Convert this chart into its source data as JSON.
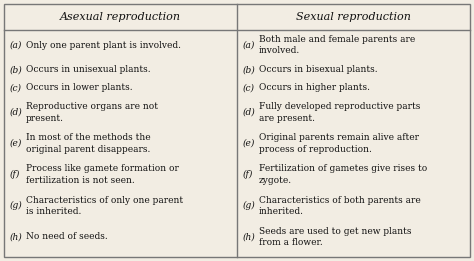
{
  "title_left": "Asexual reproduction",
  "title_right": "Sexual reproduction",
  "left_items": [
    [
      "(a)",
      "Only one parent plant is involved."
    ],
    [
      "(b)",
      "Occurs in unisexual plants."
    ],
    [
      "(c)",
      "Occurs in lower plants."
    ],
    [
      "(d)",
      "Reproductive organs are not\npresent."
    ],
    [
      "(e)",
      "In most of the methods the\noriginal parent disappears."
    ],
    [
      "(f)",
      "Process like gamete formation or\nfertilization is not seen."
    ],
    [
      "(g)",
      "Characteristics of only one parent\nis inherited."
    ],
    [
      "(h)",
      "No need of seeds."
    ]
  ],
  "right_items": [
    [
      "(a)",
      "Both male and female parents are\ninvolved."
    ],
    [
      "(b)",
      "Occurs in bisexual plants."
    ],
    [
      "(c)",
      "Occurs in higher plants."
    ],
    [
      "(d)",
      "Fully developed reproductive parts\nare present."
    ],
    [
      "(e)",
      "Original parents remain alive after\nprocess of reproduction."
    ],
    [
      "(f)",
      "Fertilization of gametes give rises to\nzygote."
    ],
    [
      "(g)",
      "Characteristics of both parents are\ninherited."
    ],
    [
      "(h)",
      "Seeds are used to get new plants\nfrom a flower."
    ]
  ],
  "bg_color": "#f2ede3",
  "border_color": "#777777",
  "text_color": "#111111",
  "font_size": 6.5,
  "header_font_size": 8.0,
  "fig_width": 4.74,
  "fig_height": 2.61,
  "dpi": 100
}
